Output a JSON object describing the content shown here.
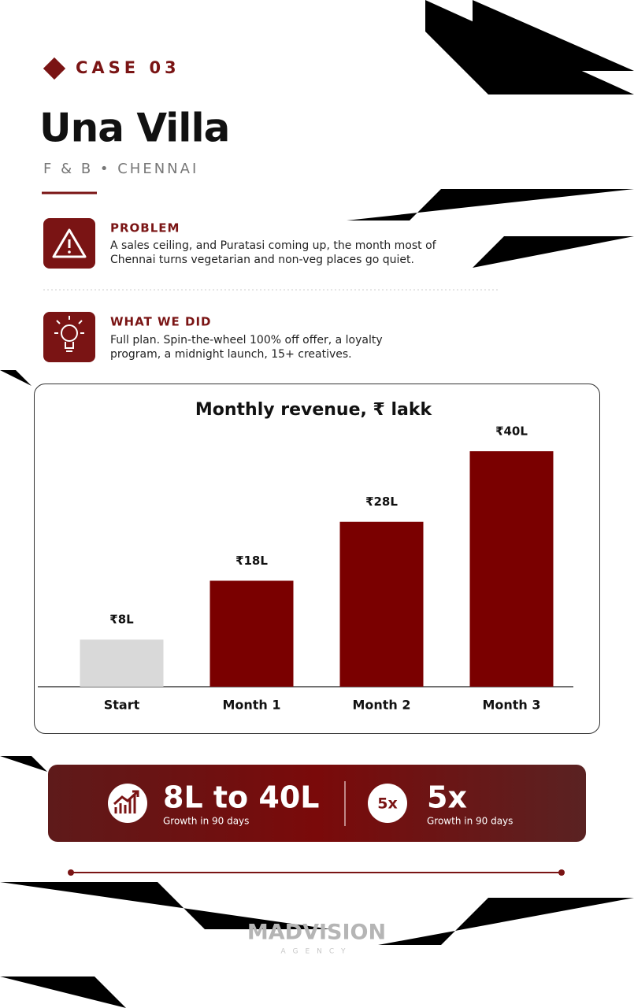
{
  "header": {
    "case": "CASE 03",
    "title": "Una Villa",
    "subtitle": "F & B • CHENNAI"
  },
  "sections": [
    {
      "heading": "PROBLEM",
      "lines": [
        "A sales ceiling, and Puratasi coming up, the month most of",
        "Chennai turns vegetarian and non-veg places go quiet."
      ]
    },
    {
      "heading": "WHAT WE DID",
      "lines": [
        "Full plan. Spin-the-wheel 100% off offer, a loyalty",
        "program, a midnight launch, 15+ creatives."
      ]
    }
  ],
  "chart_data": {
    "type": "bar",
    "title": "Monthly revenue, ₹ lakk",
    "categories": [
      "Start",
      "Month 1",
      "Month 2",
      "Month 3"
    ],
    "values": [
      8,
      18,
      28,
      40
    ],
    "value_labels": [
      "₹8L",
      "₹18L",
      "₹28L",
      "₹40L"
    ],
    "colors": [
      "#d9d9d9",
      "#7a0000",
      "#7a0000",
      "#7a0000"
    ]
  },
  "stats": [
    {
      "value": "8L to 40L",
      "caption": "Growth in 90 days"
    },
    {
      "badge": "5x",
      "value": "5x",
      "caption": "Growth in 90 days"
    }
  ],
  "footer": {
    "brand": "MADVISION",
    "tagline": "AGENCY"
  }
}
